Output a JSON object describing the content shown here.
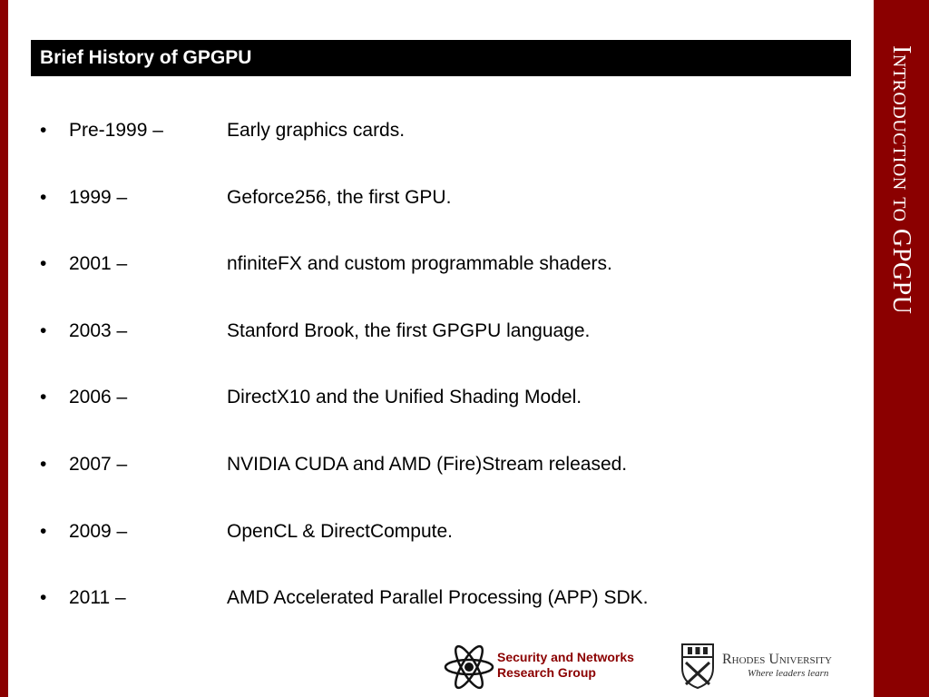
{
  "slide": {
    "title": "Brief History of GPGPU",
    "side_title": "Introduction to GPGPU",
    "accent_color": "#8b0000"
  },
  "timeline": [
    {
      "bullet": "•",
      "year": "Pre-1999 –",
      "text": "Early graphics cards."
    },
    {
      "bullet": "•",
      "year": "1999 –",
      "text": "Geforce256, the first GPU."
    },
    {
      "bullet": "•",
      "year": "2001 –",
      "text": "nfiniteFX and custom programmable shaders."
    },
    {
      "bullet": "•",
      "year": "2003 –",
      "text": "Stanford Brook, the first GPGPU language."
    },
    {
      "bullet": "•",
      "year": "2006 –",
      "text": "DirectX10 and the Unified Shading Model."
    },
    {
      "bullet": "•",
      "year": "2007 –",
      "text": "NVIDIA CUDA and AMD (Fire)Stream released."
    },
    {
      "bullet": "•",
      "year": "2009 –",
      "text": "OpenCL & DirectCompute."
    },
    {
      "bullet": "•",
      "year": "2011 –",
      "text": "AMD Accelerated Parallel Processing (APP) SDK."
    }
  ],
  "footer": {
    "snrg_line1": "Security and Networks",
    "snrg_line2": "Research Group",
    "rhodes_name": "Rhodes University",
    "rhodes_tagline": "Where leaders learn",
    "snrg_icon": "atom-logo-icon",
    "rhodes_icon": "university-crest-icon"
  }
}
